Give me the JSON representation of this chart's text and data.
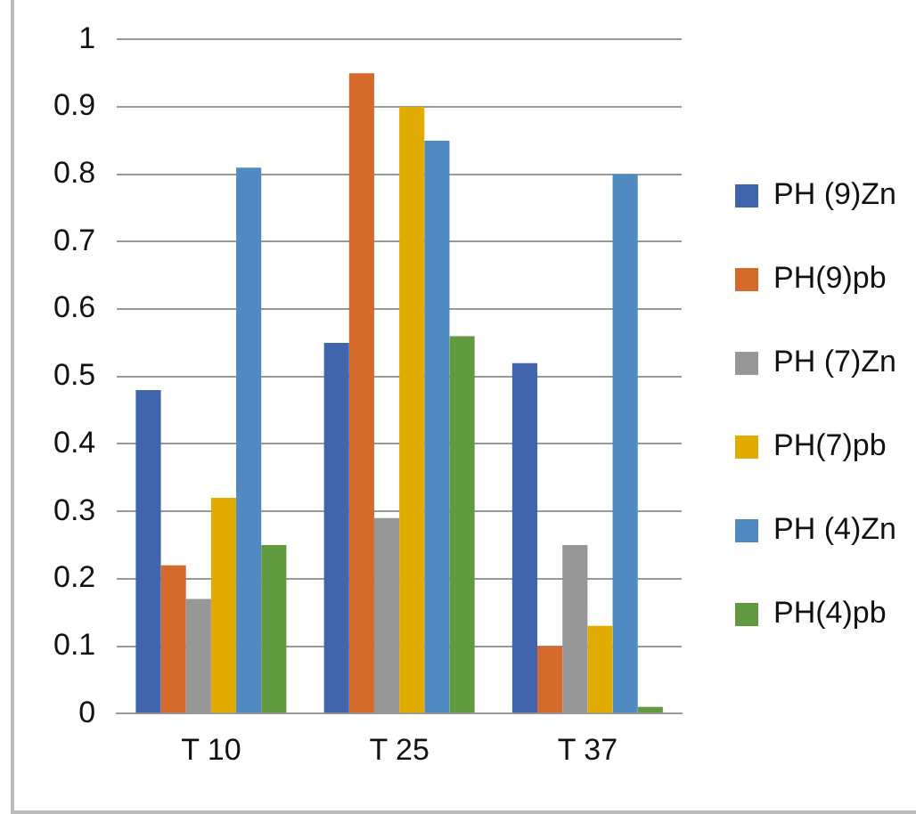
{
  "chart_data": {
    "type": "bar",
    "categories": [
      "T 10",
      "T 25",
      "T 37"
    ],
    "series": [
      {
        "name": "PH (9)Zn",
        "color": "#4065ad",
        "values": [
          0.48,
          0.55,
          0.52
        ]
      },
      {
        "name": "PH(9)pb",
        "color": "#d46b2c",
        "values": [
          0.22,
          0.95,
          0.1
        ]
      },
      {
        "name": "PH (7)Zn",
        "color": "#979797",
        "values": [
          0.17,
          0.29,
          0.25
        ]
      },
      {
        "name": "PH(7)pb",
        "color": "#e2ab00",
        "values": [
          0.32,
          0.9,
          0.13
        ]
      },
      {
        "name": "PH (4)Zn",
        "color": "#508ac0",
        "values": [
          0.81,
          0.85,
          0.8
        ]
      },
      {
        "name": "PH(4)pb",
        "color": "#629a40",
        "values": [
          0.25,
          0.56,
          0.01
        ]
      }
    ],
    "ylim": [
      0,
      1
    ],
    "yticks": [
      0,
      0.1,
      0.2,
      0.3,
      0.4,
      0.5,
      0.6,
      0.7,
      0.8,
      0.9,
      1
    ],
    "grid": "y",
    "legend": "right"
  }
}
